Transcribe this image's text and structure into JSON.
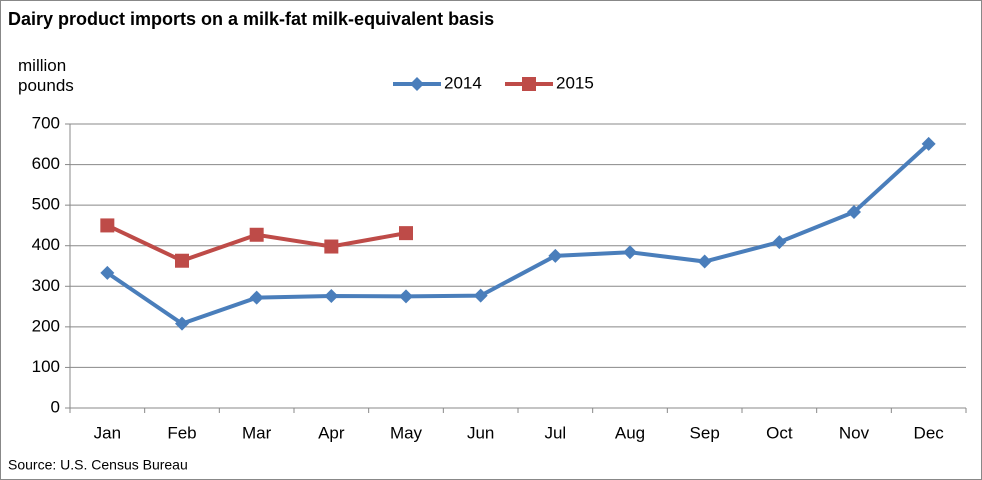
{
  "chart_data": {
    "type": "line",
    "title": "Dairy product imports on a milk-fat milk-equivalent basis",
    "y_label": "million pounds",
    "source": "Source: U.S. Census Bureau",
    "categories": [
      "Jan",
      "Feb",
      "Mar",
      "Apr",
      "May",
      "Jun",
      "Jul",
      "Aug",
      "Sep",
      "Oct",
      "Nov",
      "Dec"
    ],
    "series": [
      {
        "name": "2014",
        "color": "#4a7ebb",
        "marker": "diamond",
        "values": [
          333,
          208,
          272,
          276,
          275,
          277,
          375,
          384,
          361,
          409,
          483,
          651
        ]
      },
      {
        "name": "2015",
        "color": "#be4b48",
        "marker": "square",
        "values": [
          450,
          363,
          427,
          398,
          431,
          null,
          null,
          null,
          null,
          null,
          null,
          null
        ]
      }
    ],
    "ylim": [
      0,
      700
    ],
    "yticks": [
      0,
      100,
      200,
      300,
      400,
      500,
      600,
      700
    ],
    "grid": true,
    "legend": "top"
  }
}
